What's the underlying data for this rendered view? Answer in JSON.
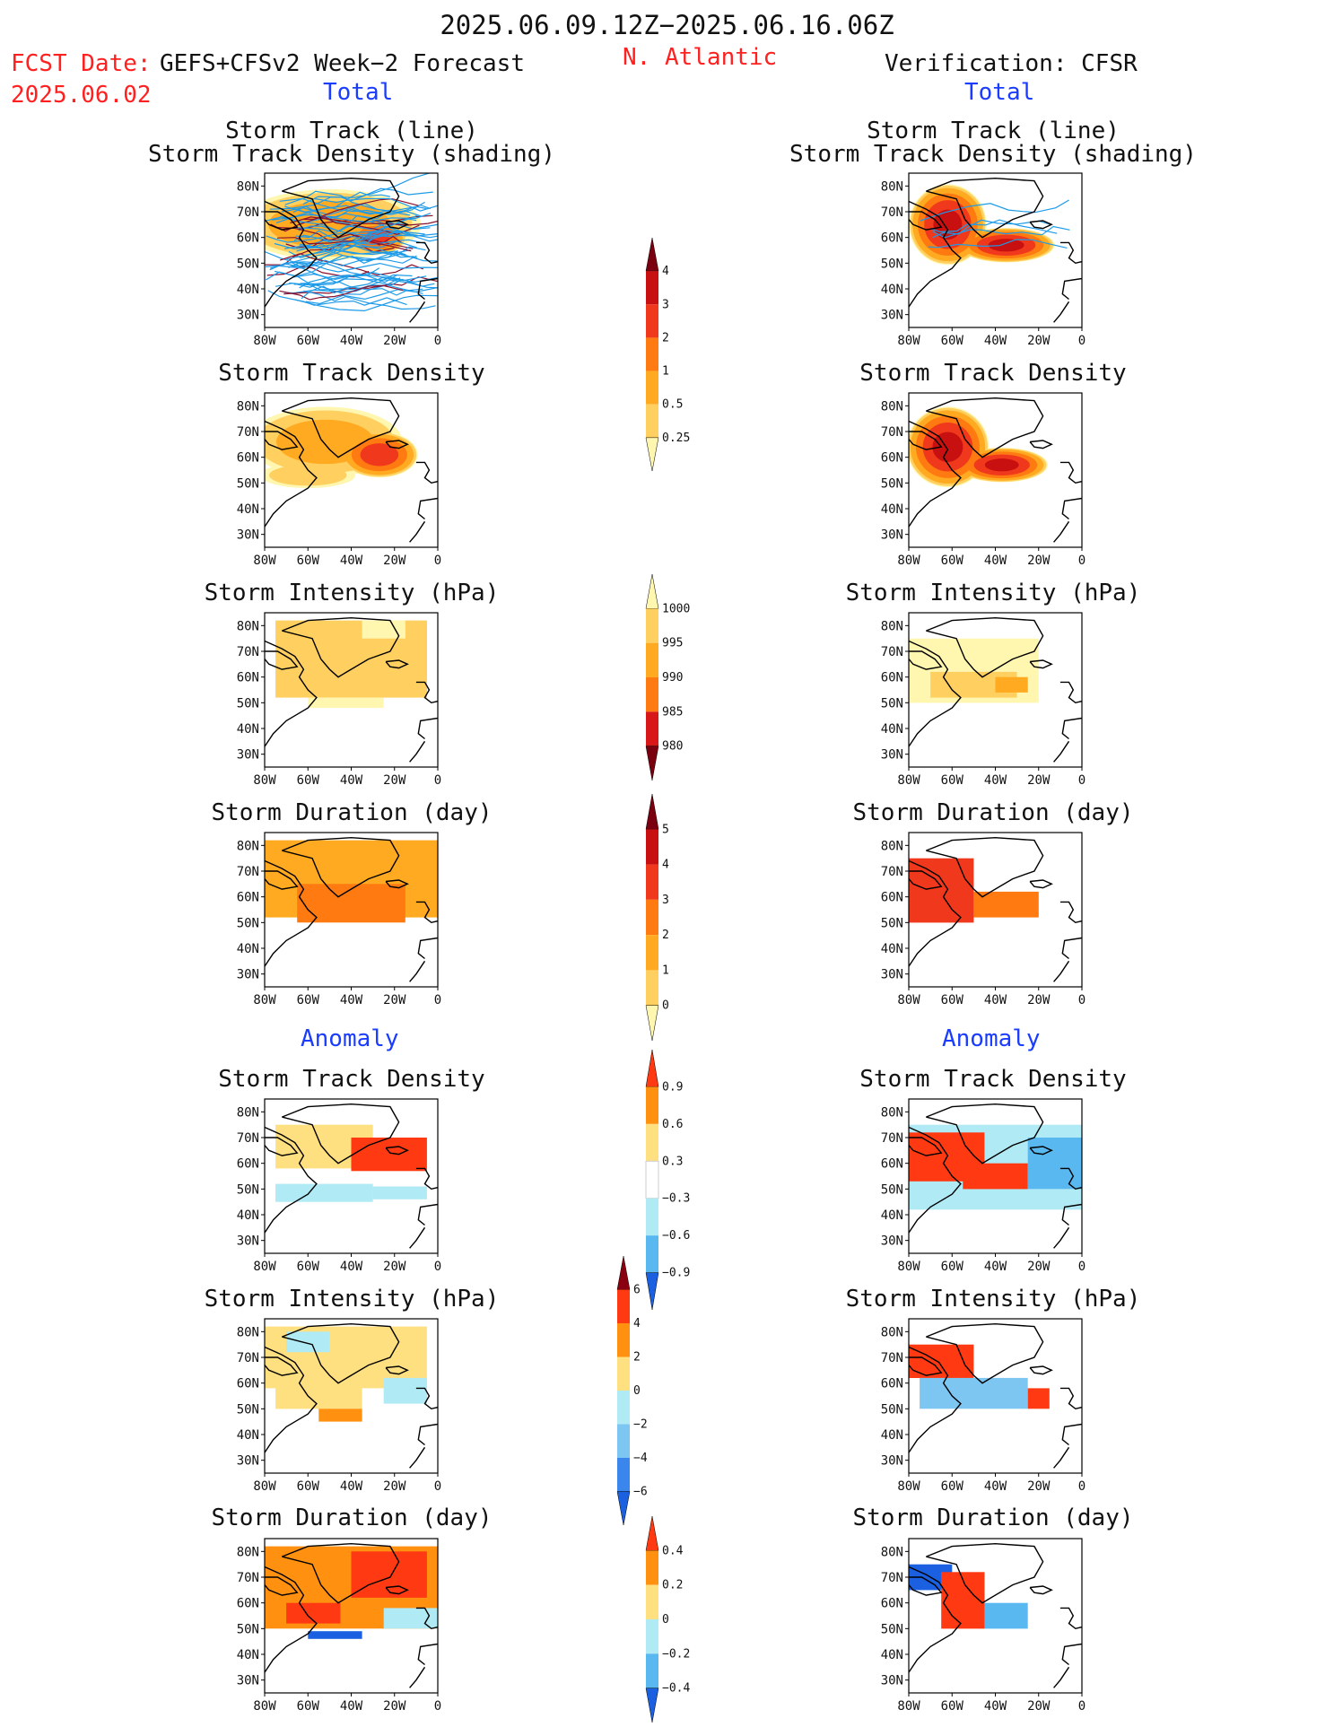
{
  "header": {
    "title": "2025.06.09.12Z−2025.06.16.06Z",
    "fcst_label": "FCST Date:",
    "model": "GEFS+CFSv2 Week−2 Forecast",
    "fcst_date": "2025.06.02",
    "region": "N. Atlantic",
    "verification": "Verification: CFSR"
  },
  "sections": {
    "total": "Total",
    "anomaly": "Anomaly"
  },
  "panel_titles": {
    "track_line": "Storm Track (line)",
    "track_shading": "Storm Track Density (shading)",
    "density": "Storm Track Density",
    "intensity": "Storm Intensity (hPa)",
    "duration": "Storm Duration (day)"
  },
  "colors": {
    "title_red": "#ff2020",
    "section_blue": "#1a3cff",
    "track_line": "#1e9be8",
    "track_mean": "#8a1030"
  },
  "chart_data": [
    {
      "type": "heatmap",
      "name": "fcst-track-line",
      "title": "Storm Track (line) / Storm Track Density (shading)",
      "x_ticks": [
        "80W",
        "60W",
        "40W",
        "20W",
        "0"
      ],
      "y_ticks": [
        "80N",
        "70N",
        "60N",
        "50N",
        "40N",
        "30N"
      ],
      "xlim": [
        -80,
        0
      ],
      "ylim": [
        25,
        85
      ],
      "overlay": "storm track lines (many ensemble tracks)",
      "blobs": [
        {
          "lon": -50,
          "lat": 65,
          "rx": 40,
          "ry": 13,
          "v": 1.2
        },
        {
          "lon": -28,
          "lat": 60,
          "rx": 12,
          "ry": 6,
          "v": 3.2
        }
      ]
    },
    {
      "type": "heatmap",
      "name": "fcst-track-density",
      "title": "Storm Track Density",
      "x_ticks": [
        "80W",
        "60W",
        "40W",
        "20W",
        "0"
      ],
      "y_ticks": [
        "80N",
        "70N",
        "60N",
        "50N",
        "40N",
        "30N"
      ],
      "xlim": [
        -80,
        0
      ],
      "ylim": [
        25,
        85
      ],
      "blobs": [
        {
          "lon": -52,
          "lat": 66,
          "rx": 34,
          "ry": 13,
          "v": 1.1
        },
        {
          "lon": -27,
          "lat": 61,
          "rx": 16,
          "ry": 8,
          "v": 3.5
        },
        {
          "lon": -60,
          "lat": 53,
          "rx": 22,
          "ry": 5,
          "v": 0.6
        }
      ]
    },
    {
      "type": "heatmap",
      "name": "fcst-intensity",
      "title": "Storm Intensity (hPa)",
      "x_ticks": [
        "80W",
        "60W",
        "40W",
        "20W",
        "0"
      ],
      "y_ticks": [
        "80N",
        "70N",
        "60N",
        "50N",
        "40N",
        "30N"
      ],
      "xlim": [
        -80,
        0
      ],
      "ylim": [
        25,
        85
      ],
      "regions": [
        {
          "lon": [
            -75,
            -5
          ],
          "lat": [
            52,
            82
          ],
          "v": 993
        },
        {
          "lon": [
            -35,
            -15
          ],
          "lat": [
            75,
            82
          ],
          "v": 997
        },
        {
          "lon": [
            -60,
            -25
          ],
          "lat": [
            48,
            52
          ],
          "v": 997
        }
      ]
    },
    {
      "type": "heatmap",
      "name": "fcst-duration",
      "title": "Storm Duration (day)",
      "x_ticks": [
        "80W",
        "60W",
        "40W",
        "20W",
        "0"
      ],
      "y_ticks": [
        "80N",
        "70N",
        "60N",
        "50N",
        "40N",
        "30N"
      ],
      "xlim": [
        -80,
        0
      ],
      "ylim": [
        25,
        85
      ],
      "regions": [
        {
          "lon": [
            -80,
            0
          ],
          "lat": [
            52,
            82
          ],
          "v": 2.5
        },
        {
          "lon": [
            -65,
            -15
          ],
          "lat": [
            50,
            65
          ],
          "v": 3.5
        }
      ]
    },
    {
      "type": "heatmap",
      "name": "obs-track-line",
      "title": "Storm Track (line) / Storm Track Density (shading)",
      "x_ticks": [
        "80W",
        "60W",
        "40W",
        "20W",
        "0"
      ],
      "y_ticks": [
        "80N",
        "70N",
        "60N",
        "50N",
        "40N",
        "30N"
      ],
      "xlim": [
        -80,
        0
      ],
      "ylim": [
        25,
        85
      ],
      "overlay": "few observed tracks",
      "blobs": [
        {
          "lon": -62,
          "lat": 65,
          "rx": 16,
          "ry": 14,
          "v": 4.2
        },
        {
          "lon": -35,
          "lat": 57,
          "rx": 20,
          "ry": 6,
          "v": 4.2
        }
      ]
    },
    {
      "type": "heatmap",
      "name": "obs-track-density",
      "title": "Storm Track Density",
      "x_ticks": [
        "80W",
        "60W",
        "40W",
        "20W",
        "0"
      ],
      "y_ticks": [
        "80N",
        "70N",
        "60N",
        "50N",
        "40N",
        "30N"
      ],
      "xlim": [
        -80,
        0
      ],
      "ylim": [
        25,
        85
      ],
      "blobs": [
        {
          "lon": -62,
          "lat": 64,
          "rx": 17,
          "ry": 14,
          "v": 4.2
        },
        {
          "lon": -37,
          "lat": 57,
          "rx": 19,
          "ry": 6,
          "v": 4.2
        }
      ]
    },
    {
      "type": "heatmap",
      "name": "obs-intensity",
      "title": "Storm Intensity (hPa)",
      "x_ticks": [
        "80W",
        "60W",
        "40W",
        "20W",
        "0"
      ],
      "y_ticks": [
        "80N",
        "70N",
        "60N",
        "50N",
        "40N",
        "30N"
      ],
      "xlim": [
        -80,
        0
      ],
      "ylim": [
        25,
        85
      ],
      "regions": [
        {
          "lon": [
            -80,
            -20
          ],
          "lat": [
            50,
            75
          ],
          "v": 997
        },
        {
          "lon": [
            -70,
            -30
          ],
          "lat": [
            52,
            62
          ],
          "v": 992
        },
        {
          "lon": [
            -40,
            -25
          ],
          "lat": [
            54,
            60
          ],
          "v": 988
        }
      ]
    },
    {
      "type": "heatmap",
      "name": "obs-duration",
      "title": "Storm Duration (day)",
      "x_ticks": [
        "80W",
        "60W",
        "40W",
        "20W",
        "0"
      ],
      "y_ticks": [
        "80N",
        "70N",
        "60N",
        "50N",
        "40N",
        "30N"
      ],
      "xlim": [
        -80,
        0
      ],
      "ylim": [
        25,
        85
      ],
      "regions": [
        {
          "lon": [
            -80,
            -50
          ],
          "lat": [
            50,
            75
          ],
          "v": 4.5
        },
        {
          "lon": [
            -50,
            -20
          ],
          "lat": [
            52,
            62
          ],
          "v": 3.5
        }
      ]
    },
    {
      "type": "heatmap",
      "name": "fcst-anom-density",
      "title": "Storm Track Density",
      "x_ticks": [
        "80W",
        "60W",
        "40W",
        "20W",
        "0"
      ],
      "y_ticks": [
        "80N",
        "70N",
        "60N",
        "50N",
        "40N",
        "30N"
      ],
      "xlim": [
        -80,
        0
      ],
      "ylim": [
        25,
        85
      ],
      "regions": [
        {
          "lon": [
            -75,
            -30
          ],
          "lat": [
            58,
            75
          ],
          "v": 0.35
        },
        {
          "lon": [
            -40,
            -5
          ],
          "lat": [
            57,
            70
          ],
          "v": 0.9
        },
        {
          "lon": [
            -75,
            -30
          ],
          "lat": [
            45,
            52
          ],
          "v": -0.45
        },
        {
          "lon": [
            -30,
            -5
          ],
          "lat": [
            46,
            51
          ],
          "v": -0.35
        }
      ]
    },
    {
      "type": "heatmap",
      "name": "fcst-anom-intensity",
      "title": "Storm Intensity (hPa)",
      "x_ticks": [
        "80W",
        "60W",
        "40W",
        "20W",
        "0"
      ],
      "y_ticks": [
        "80N",
        "70N",
        "60N",
        "50N",
        "40N",
        "30N"
      ],
      "xlim": [
        -80,
        0
      ],
      "ylim": [
        25,
        85
      ],
      "regions": [
        {
          "lon": [
            -80,
            -5
          ],
          "lat": [
            58,
            82
          ],
          "v": 1.5
        },
        {
          "lon": [
            -75,
            -35
          ],
          "lat": [
            50,
            60
          ],
          "v": 1
        },
        {
          "lon": [
            -25,
            -5
          ],
          "lat": [
            52,
            62
          ],
          "v": -1
        },
        {
          "lon": [
            -70,
            -50
          ],
          "lat": [
            72,
            80
          ],
          "v": -0.5
        },
        {
          "lon": [
            -55,
            -35
          ],
          "lat": [
            45,
            50
          ],
          "v": 3
        }
      ]
    },
    {
      "type": "heatmap",
      "name": "fcst-anom-duration",
      "title": "Storm Duration (day)",
      "x_ticks": [
        "80W",
        "60W",
        "40W",
        "20W",
        "0"
      ],
      "y_ticks": [
        "80N",
        "70N",
        "60N",
        "50N",
        "40N",
        "30N"
      ],
      "xlim": [
        -80,
        0
      ],
      "ylim": [
        25,
        85
      ],
      "regions": [
        {
          "lon": [
            -80,
            0
          ],
          "lat": [
            50,
            82
          ],
          "v": 0.25
        },
        {
          "lon": [
            -40,
            -5
          ],
          "lat": [
            62,
            80
          ],
          "v": 0.45
        },
        {
          "lon": [
            -70,
            -45
          ],
          "lat": [
            52,
            60
          ],
          "v": 0.45
        },
        {
          "lon": [
            -60,
            -35
          ],
          "lat": [
            46,
            49
          ],
          "v": -0.45
        },
        {
          "lon": [
            -25,
            0
          ],
          "lat": [
            50,
            58
          ],
          "v": -0.15
        }
      ]
    },
    {
      "type": "heatmap",
      "name": "obs-anom-density",
      "title": "Storm Track Density",
      "x_ticks": [
        "80W",
        "60W",
        "40W",
        "20W",
        "0"
      ],
      "y_ticks": [
        "80N",
        "70N",
        "60N",
        "50N",
        "40N",
        "30N"
      ],
      "xlim": [
        -80,
        0
      ],
      "ylim": [
        25,
        85
      ],
      "regions": [
        {
          "lon": [
            -80,
            0
          ],
          "lat": [
            42,
            75
          ],
          "v": -0.45
        },
        {
          "lon": [
            -80,
            -45
          ],
          "lat": [
            53,
            72
          ],
          "v": 0.9
        },
        {
          "lon": [
            -55,
            -25
          ],
          "lat": [
            50,
            60
          ],
          "v": 0.9
        },
        {
          "lon": [
            -25,
            0
          ],
          "lat": [
            50,
            70
          ],
          "v": -0.75
        }
      ]
    },
    {
      "type": "heatmap",
      "name": "obs-anom-intensity",
      "title": "Storm Intensity (hPa)",
      "x_ticks": [
        "80W",
        "60W",
        "40W",
        "20W",
        "0"
      ],
      "y_ticks": [
        "80N",
        "70N",
        "60N",
        "50N",
        "40N",
        "30N"
      ],
      "xlim": [
        -80,
        0
      ],
      "ylim": [
        25,
        85
      ],
      "regions": [
        {
          "lon": [
            -80,
            -50
          ],
          "lat": [
            62,
            75
          ],
          "v": 4.5
        },
        {
          "lon": [
            -75,
            -25
          ],
          "lat": [
            50,
            62
          ],
          "v": -3
        },
        {
          "lon": [
            -25,
            -15
          ],
          "lat": [
            50,
            58
          ],
          "v": 4.5
        }
      ]
    },
    {
      "type": "heatmap",
      "name": "obs-anom-duration",
      "title": "Storm Duration (day)",
      "x_ticks": [
        "80W",
        "60W",
        "40W",
        "20W",
        "0"
      ],
      "y_ticks": [
        "80N",
        "70N",
        "60N",
        "50N",
        "40N",
        "30N"
      ],
      "xlim": [
        -80,
        0
      ],
      "ylim": [
        25,
        85
      ],
      "regions": [
        {
          "lon": [
            -80,
            -60
          ],
          "lat": [
            65,
            75
          ],
          "v": -0.45
        },
        {
          "lon": [
            -65,
            -45
          ],
          "lat": [
            50,
            72
          ],
          "v": 0.45
        },
        {
          "lon": [
            -45,
            -25
          ],
          "lat": [
            50,
            60
          ],
          "v": -0.35
        }
      ]
    }
  ],
  "colorbars": [
    {
      "name": "cb-density",
      "labels": [
        "4",
        "3",
        "2",
        "1",
        "0.5",
        "0.25"
      ],
      "colors": [
        "#7a0010",
        "#c81010",
        "#f0381c",
        "#ff7a10",
        "#ffaa20",
        "#ffd060",
        "#fff6b0"
      ]
    },
    {
      "name": "cb-intensity",
      "labels": [
        "1000",
        "995",
        "990",
        "985",
        "980"
      ],
      "colors": [
        "#fff6b0",
        "#ffd060",
        "#ffaa20",
        "#ff7a10",
        "#d81818",
        "#7a0010"
      ]
    },
    {
      "name": "cb-duration",
      "labels": [
        "5",
        "4",
        "3",
        "2",
        "1",
        "0"
      ],
      "colors": [
        "#7a0010",
        "#c81010",
        "#f0381c",
        "#ff7a10",
        "#ffaa20",
        "#ffd060",
        "#fff6b0"
      ]
    },
    {
      "name": "cb-anom-density",
      "labels": [
        "0.9",
        "0.6",
        "0.3",
        "−0.3",
        "−0.6",
        "−0.9"
      ],
      "colors": [
        "#ff3a12",
        "#ff9010",
        "#ffe080",
        "#ffffff",
        "#b0eaf4",
        "#5ab8f0",
        "#1a60e0"
      ]
    },
    {
      "name": "cb-anom-intensity",
      "labels": [
        "6",
        "4",
        "2",
        "0",
        "−2",
        "−4",
        "−6"
      ],
      "colors": [
        "#8a0010",
        "#ff3a12",
        "#ff9010",
        "#ffe080",
        "#b0eaf4",
        "#7ec6f2",
        "#3a86ec",
        "#1a60e0"
      ]
    },
    {
      "name": "cb-anom-duration",
      "labels": [
        "0.4",
        "0.2",
        "0",
        "−0.2",
        "−0.4"
      ],
      "colors": [
        "#ff3a12",
        "#ff9010",
        "#ffe080",
        "#b0eaf4",
        "#5ab8f0",
        "#1a60e0"
      ]
    }
  ]
}
